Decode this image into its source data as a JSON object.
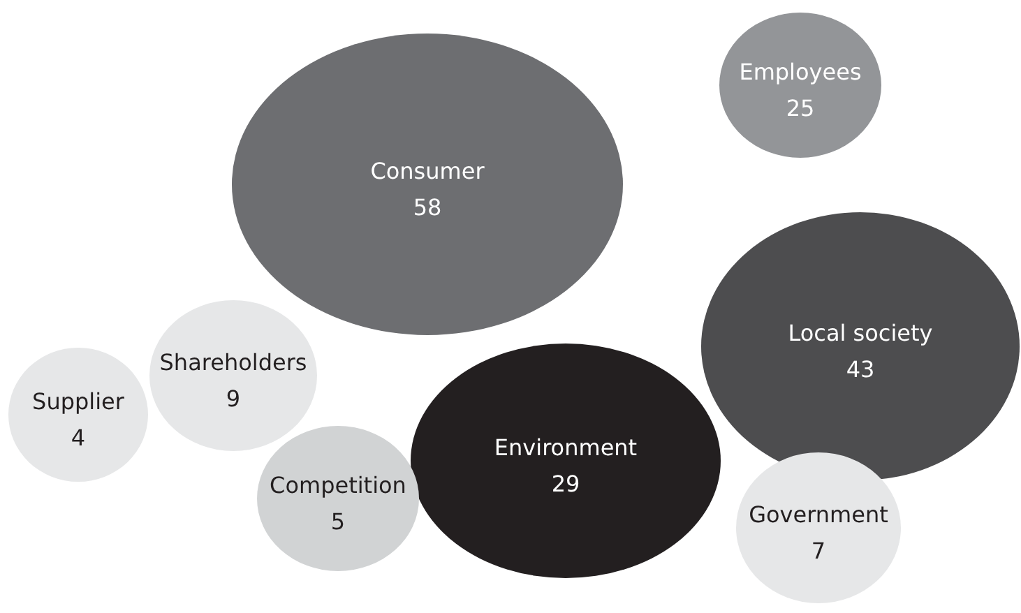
{
  "chart_data": {
    "type": "other",
    "categories": [
      "Consumer",
      "Employees",
      "Local society",
      "Environment",
      "Supplier",
      "Shareholders",
      "Competition",
      "Government"
    ],
    "values": [
      58,
      25,
      43,
      29,
      4,
      9,
      5,
      7
    ],
    "data_labels": true,
    "colors": [
      "#6d6e71",
      "#939598",
      "#4d4d4f",
      "#231f20",
      "#e6e7e8",
      "#e6e7e8",
      "#d1d3d4",
      "#e6e7e8"
    ]
  }
}
